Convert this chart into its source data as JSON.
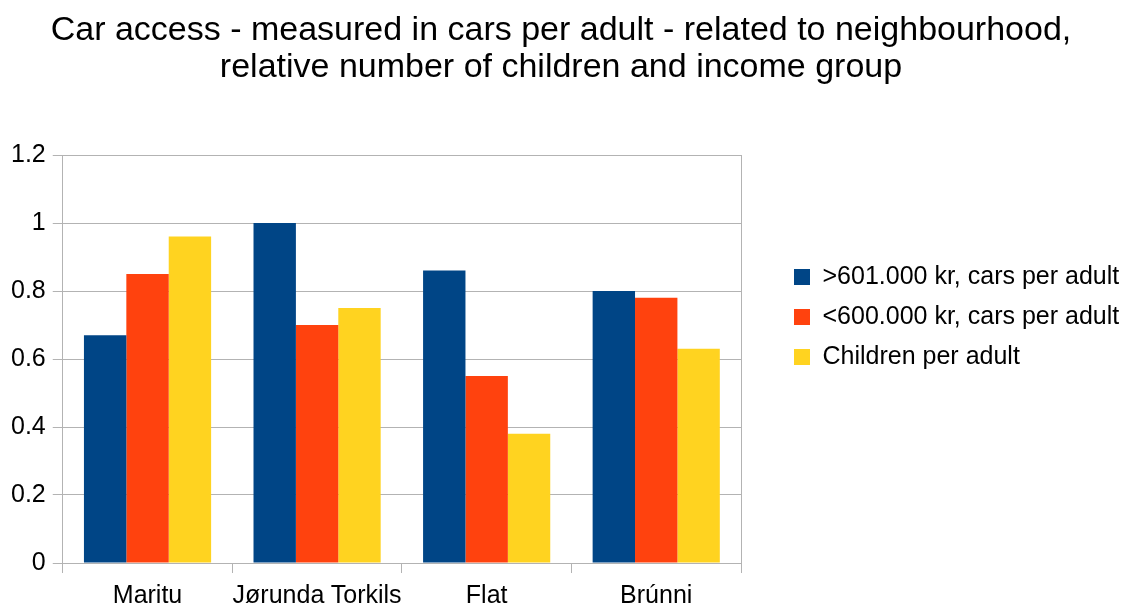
{
  "chart_data": {
    "type": "bar",
    "title": "Car access - measured in cars per adult - related to neighbourhood, relative number of children and income group",
    "categories": [
      "Maritu",
      "Jørunda Torkils",
      "Flat",
      "Brúnni"
    ],
    "series": [
      {
        "name": ">601.000 kr, cars per adult",
        "color": "#004586",
        "values": [
          0.67,
          1,
          0.86,
          0.8
        ]
      },
      {
        "name": "<600.000 kr, cars per adult",
        "color": "#ff420e",
        "values": [
          0.85,
          0.7,
          0.55,
          0.78
        ]
      },
      {
        "name": "Children per adult",
        "color": "#ffd320",
        "values": [
          0.96,
          0.75,
          0.38,
          0.63
        ]
      }
    ],
    "ylim": [
      0,
      1.2
    ],
    "yticks": [
      0,
      0.2,
      0.4,
      0.6,
      0.8,
      1,
      1.2
    ],
    "grid": "y",
    "legend": "right"
  }
}
